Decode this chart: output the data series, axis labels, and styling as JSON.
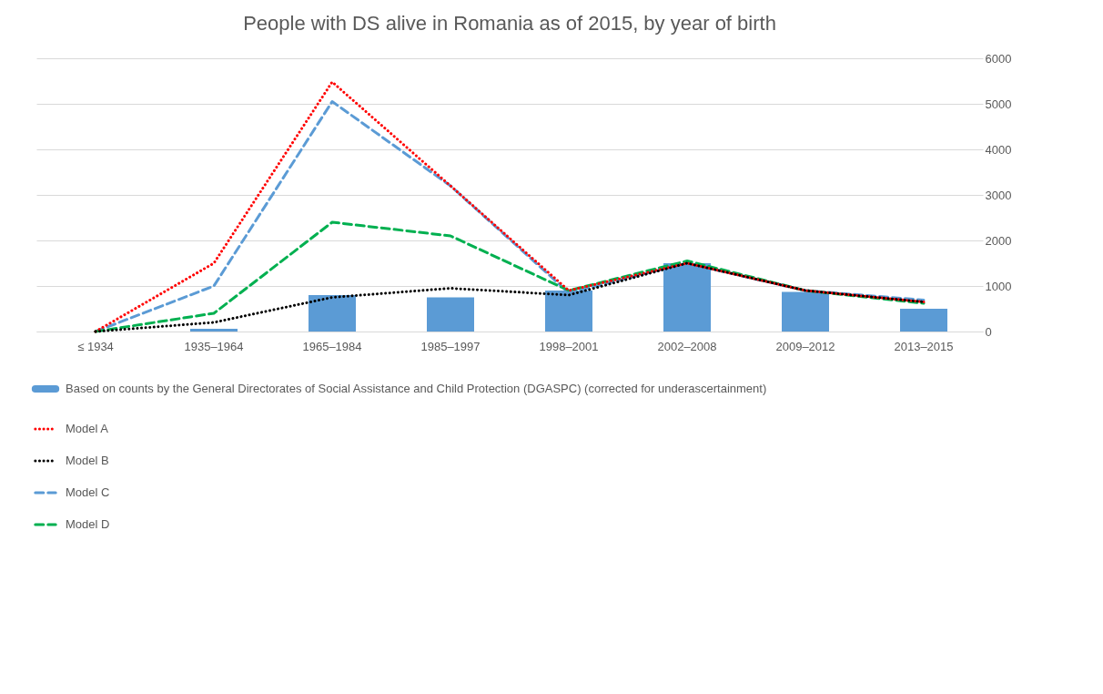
{
  "chart_data": {
    "type": "bar",
    "title": "People with DS alive in Romania as of 2015, by year of birth",
    "categories": [
      "≤ 1934",
      "1935–1964",
      "1965–1984",
      "1985–1997",
      "1998–2001",
      "2002–2008",
      "2009–2012",
      "2013–2015"
    ],
    "series": [
      {
        "name": "Based on counts by the General Directorates of Social Assistance and Child Protection (DGASPC) (corrected for underascertainment)",
        "color": "#5b9bd5",
        "values": [
          0,
          60,
          800,
          750,
          900,
          1500,
          870,
          500
        ]
      },
      {
        "name": "Model A",
        "type": "line",
        "line_style": "dotted",
        "color": "#ff0000",
        "values": [
          0,
          1500,
          5480,
          3200,
          900,
          1500,
          900,
          650
        ]
      },
      {
        "name": "Model B",
        "type": "line",
        "line_style": "dotted",
        "color": "#000000",
        "values": [
          0,
          200,
          750,
          950,
          800,
          1500,
          900,
          650
        ]
      },
      {
        "name": "Model C",
        "type": "line",
        "line_style": "dashed",
        "color": "#5b9bd5",
        "values": [
          0,
          1000,
          5050,
          3200,
          850,
          1500,
          900,
          690
        ]
      },
      {
        "name": "Model D",
        "type": "line",
        "line_style": "dashed",
        "color": "#00b050",
        "values": [
          0,
          400,
          2400,
          2100,
          900,
          1550,
          900,
          620
        ]
      }
    ],
    "ylim": [
      0,
      6000
    ],
    "yticks": [
      0,
      1000,
      2000,
      3000,
      4000,
      5000,
      6000
    ],
    "grid": "y",
    "legend": "bottom"
  }
}
